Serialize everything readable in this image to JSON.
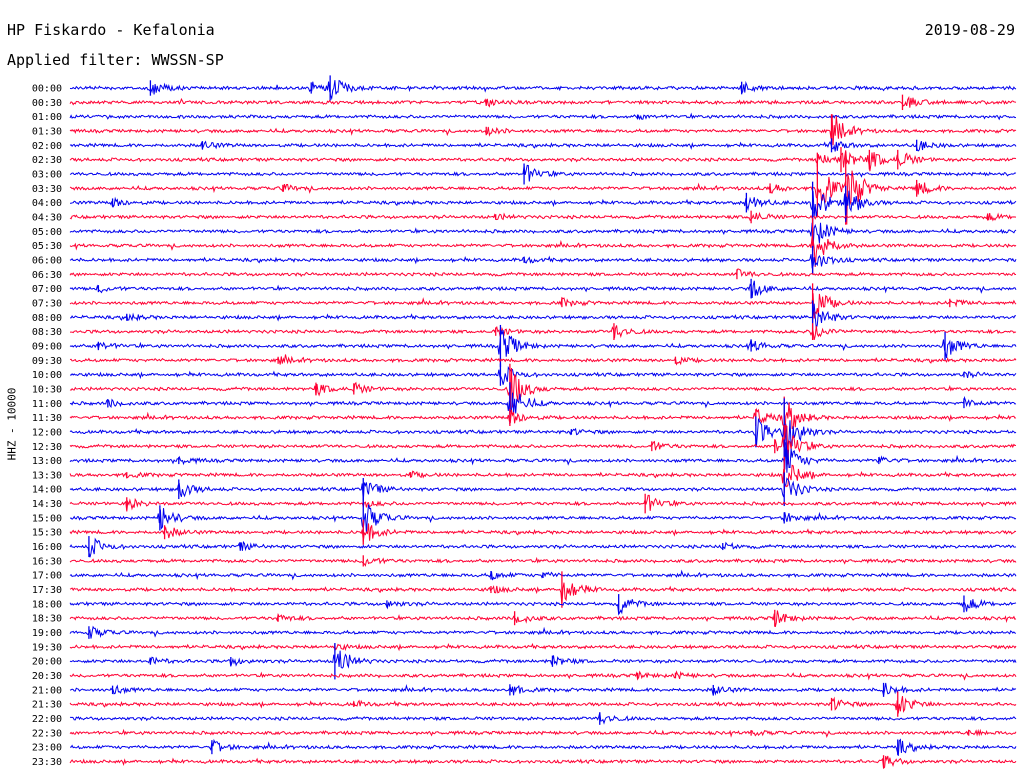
{
  "header": {
    "title": "HP Fiskardo - Kefalonia",
    "date": "2019-08-29",
    "filter": "Applied filter: WWSSN-SP"
  },
  "channel_label": "HHZ - 10000",
  "colors": {
    "even_row": "#0000ee",
    "odd_row": "#ff0033",
    "background": "#ffffff",
    "text": "#000000"
  },
  "chart_data": {
    "type": "helicorder",
    "title": "HP Fiskardo - Kefalonia",
    "subtitle": "Applied filter: WWSSN-SP",
    "date": "2019-08-29",
    "ylabel": "HHZ - 10000",
    "row_duration_minutes": 30,
    "row_colors": [
      "#0000ee",
      "#ff0033"
    ],
    "rows": [
      {
        "label": "00:00",
        "events": [
          {
            "t": 0.085,
            "a": 0.55
          },
          {
            "t": 0.255,
            "a": 0.4
          },
          {
            "t": 0.275,
            "a": 0.9
          },
          {
            "t": 0.71,
            "a": 0.45
          }
        ]
      },
      {
        "label": "00:30",
        "events": [
          {
            "t": 0.88,
            "a": 0.55
          },
          {
            "t": 0.44,
            "a": 0.2
          }
        ]
      },
      {
        "label": "01:00",
        "events": [
          {
            "t": 0.6,
            "a": 0.15
          }
        ]
      },
      {
        "label": "01:30",
        "events": [
          {
            "t": 0.44,
            "a": 0.3
          },
          {
            "t": 0.805,
            "a": 1.2
          }
        ]
      },
      {
        "label": "02:00",
        "events": [
          {
            "t": 0.14,
            "a": 0.3
          },
          {
            "t": 0.895,
            "a": 0.4
          },
          {
            "t": 0.805,
            "a": 0.5
          }
        ]
      },
      {
        "label": "02:30",
        "events": [
          {
            "t": 0.79,
            "a": 0.5
          },
          {
            "t": 0.815,
            "a": 0.9
          },
          {
            "t": 0.845,
            "a": 0.7
          },
          {
            "t": 0.875,
            "a": 0.7
          }
        ]
      },
      {
        "label": "03:00",
        "events": [
          {
            "t": 0.48,
            "a": 0.75
          }
        ]
      },
      {
        "label": "03:30",
        "events": [
          {
            "t": 0.79,
            "a": 2.0
          },
          {
            "t": 0.82,
            "a": 2.6
          },
          {
            "t": 0.895,
            "a": 0.6
          },
          {
            "t": 0.74,
            "a": 0.35
          },
          {
            "t": 0.225,
            "a": 0.25
          }
        ]
      },
      {
        "label": "04:00",
        "events": [
          {
            "t": 0.715,
            "a": 0.7
          },
          {
            "t": 0.785,
            "a": 1.5
          },
          {
            "t": 0.82,
            "a": 1.2
          },
          {
            "t": 0.045,
            "a": 0.3
          }
        ]
      },
      {
        "label": "04:30",
        "events": [
          {
            "t": 0.72,
            "a": 0.45
          },
          {
            "t": 0.45,
            "a": 0.2
          },
          {
            "t": 0.97,
            "a": 0.25
          }
        ]
      },
      {
        "label": "05:00",
        "events": [
          {
            "t": 0.785,
            "a": 1.4
          }
        ]
      },
      {
        "label": "05:30",
        "events": [
          {
            "t": 0.785,
            "a": 2.0
          }
        ]
      },
      {
        "label": "06:00",
        "events": [
          {
            "t": 0.785,
            "a": 1.0
          },
          {
            "t": 0.48,
            "a": 0.2
          }
        ]
      },
      {
        "label": "06:30",
        "events": [
          {
            "t": 0.705,
            "a": 0.35
          }
        ]
      },
      {
        "label": "07:00",
        "events": [
          {
            "t": 0.72,
            "a": 0.7
          },
          {
            "t": 0.03,
            "a": 0.25
          }
        ]
      },
      {
        "label": "07:30",
        "events": [
          {
            "t": 0.785,
            "a": 1.4
          },
          {
            "t": 0.52,
            "a": 0.3
          },
          {
            "t": 0.93,
            "a": 0.3
          }
        ]
      },
      {
        "label": "08:00",
        "events": [
          {
            "t": 0.785,
            "a": 1.2
          },
          {
            "t": 0.06,
            "a": 0.25
          }
        ]
      },
      {
        "label": "08:30",
        "events": [
          {
            "t": 0.45,
            "a": 0.3
          },
          {
            "t": 0.575,
            "a": 0.6
          },
          {
            "t": 0.785,
            "a": 0.6
          }
        ]
      },
      {
        "label": "09:00",
        "events": [
          {
            "t": 0.455,
            "a": 1.5
          },
          {
            "t": 0.925,
            "a": 1.0
          },
          {
            "t": 0.72,
            "a": 0.4
          },
          {
            "t": 0.03,
            "a": 0.3
          }
        ]
      },
      {
        "label": "09:30",
        "events": [
          {
            "t": 0.22,
            "a": 0.25
          },
          {
            "t": 0.64,
            "a": 0.25
          }
        ]
      },
      {
        "label": "10:00",
        "events": [
          {
            "t": 0.455,
            "a": 0.8
          },
          {
            "t": 0.945,
            "a": 0.2
          }
        ]
      },
      {
        "label": "10:30",
        "events": [
          {
            "t": 0.26,
            "a": 0.45
          },
          {
            "t": 0.3,
            "a": 0.4
          },
          {
            "t": 0.465,
            "a": 1.8
          }
        ]
      },
      {
        "label": "11:00",
        "events": [
          {
            "t": 0.465,
            "a": 1.5
          },
          {
            "t": 0.04,
            "a": 0.3
          },
          {
            "t": 0.945,
            "a": 0.35
          }
        ]
      },
      {
        "label": "11:30",
        "events": [
          {
            "t": 0.465,
            "a": 0.6
          },
          {
            "t": 0.725,
            "a": 0.6
          },
          {
            "t": 0.755,
            "a": 1.5
          }
        ]
      },
      {
        "label": "12:00",
        "events": [
          {
            "t": 0.725,
            "a": 1.1
          },
          {
            "t": 0.755,
            "a": 2.4
          },
          {
            "t": 0.53,
            "a": 0.2
          }
        ]
      },
      {
        "label": "12:30",
        "events": [
          {
            "t": 0.615,
            "a": 0.35
          },
          {
            "t": 0.745,
            "a": 0.5
          },
          {
            "t": 0.755,
            "a": 1.5
          }
        ]
      },
      {
        "label": "13:00",
        "events": [
          {
            "t": 0.755,
            "a": 1.5
          },
          {
            "t": 0.115,
            "a": 0.25
          },
          {
            "t": 0.855,
            "a": 0.25
          }
        ]
      },
      {
        "label": "13:30",
        "events": [
          {
            "t": 0.755,
            "a": 1.3
          },
          {
            "t": 0.06,
            "a": 0.2
          },
          {
            "t": 0.36,
            "a": 0.2
          }
        ]
      },
      {
        "label": "14:00",
        "events": [
          {
            "t": 0.115,
            "a": 0.7
          },
          {
            "t": 0.31,
            "a": 0.8
          },
          {
            "t": 0.755,
            "a": 1.2
          }
        ]
      },
      {
        "label": "14:30",
        "events": [
          {
            "t": 0.06,
            "a": 0.45
          },
          {
            "t": 0.608,
            "a": 0.7
          },
          {
            "t": 0.31,
            "a": 0.25
          }
        ]
      },
      {
        "label": "15:00",
        "events": [
          {
            "t": 0.095,
            "a": 0.9
          },
          {
            "t": 0.31,
            "a": 1.4
          },
          {
            "t": 0.755,
            "a": 0.4
          }
        ]
      },
      {
        "label": "15:30",
        "events": [
          {
            "t": 0.1,
            "a": 0.5
          },
          {
            "t": 0.31,
            "a": 0.9
          }
        ]
      },
      {
        "label": "16:00",
        "events": [
          {
            "t": 0.02,
            "a": 0.75
          },
          {
            "t": 0.18,
            "a": 0.3
          },
          {
            "t": 0.69,
            "a": 0.25
          }
        ]
      },
      {
        "label": "16:30",
        "events": [
          {
            "t": 0.31,
            "a": 0.4
          }
        ]
      },
      {
        "label": "17:00",
        "events": [
          {
            "t": 0.445,
            "a": 0.3
          },
          {
            "t": 0.5,
            "a": 0.2
          }
        ]
      },
      {
        "label": "17:30",
        "events": [
          {
            "t": 0.52,
            "a": 1.3
          },
          {
            "t": 0.445,
            "a": 0.25
          }
        ]
      },
      {
        "label": "18:00",
        "events": [
          {
            "t": 0.58,
            "a": 0.7
          },
          {
            "t": 0.945,
            "a": 0.6
          },
          {
            "t": 0.335,
            "a": 0.25
          }
        ]
      },
      {
        "label": "18:30",
        "events": [
          {
            "t": 0.47,
            "a": 0.5
          },
          {
            "t": 0.745,
            "a": 0.6
          },
          {
            "t": 0.22,
            "a": 0.25
          }
        ]
      },
      {
        "label": "19:00",
        "events": [
          {
            "t": 0.02,
            "a": 0.45
          }
        ]
      },
      {
        "label": "19:30",
        "events": [
          {
            "t": 0.28,
            "a": 0.2
          }
        ]
      },
      {
        "label": "20:00",
        "events": [
          {
            "t": 0.28,
            "a": 1.3
          },
          {
            "t": 0.085,
            "a": 0.25
          },
          {
            "t": 0.17,
            "a": 0.3
          },
          {
            "t": 0.51,
            "a": 0.4
          }
        ]
      },
      {
        "label": "20:30",
        "events": [
          {
            "t": 0.6,
            "a": 0.2
          },
          {
            "t": 0.64,
            "a": 0.2
          }
        ]
      },
      {
        "label": "21:00",
        "events": [
          {
            "t": 0.045,
            "a": 0.3
          },
          {
            "t": 0.465,
            "a": 0.4
          },
          {
            "t": 0.68,
            "a": 0.35
          },
          {
            "t": 0.86,
            "a": 0.5
          }
        ]
      },
      {
        "label": "21:30",
        "events": [
          {
            "t": 0.805,
            "a": 0.45
          },
          {
            "t": 0.875,
            "a": 0.9
          },
          {
            "t": 0.3,
            "a": 0.2
          }
        ]
      },
      {
        "label": "22:00",
        "events": [
          {
            "t": 0.56,
            "a": 0.45
          }
        ]
      },
      {
        "label": "22:30",
        "events": [
          {
            "t": 0.72,
            "a": 0.2
          },
          {
            "t": 0.95,
            "a": 0.2
          }
        ]
      },
      {
        "label": "23:00",
        "events": [
          {
            "t": 0.15,
            "a": 0.5
          },
          {
            "t": 0.875,
            "a": 0.55
          }
        ]
      },
      {
        "label": "23:30",
        "events": [
          {
            "t": 0.86,
            "a": 0.45
          }
        ]
      }
    ]
  }
}
